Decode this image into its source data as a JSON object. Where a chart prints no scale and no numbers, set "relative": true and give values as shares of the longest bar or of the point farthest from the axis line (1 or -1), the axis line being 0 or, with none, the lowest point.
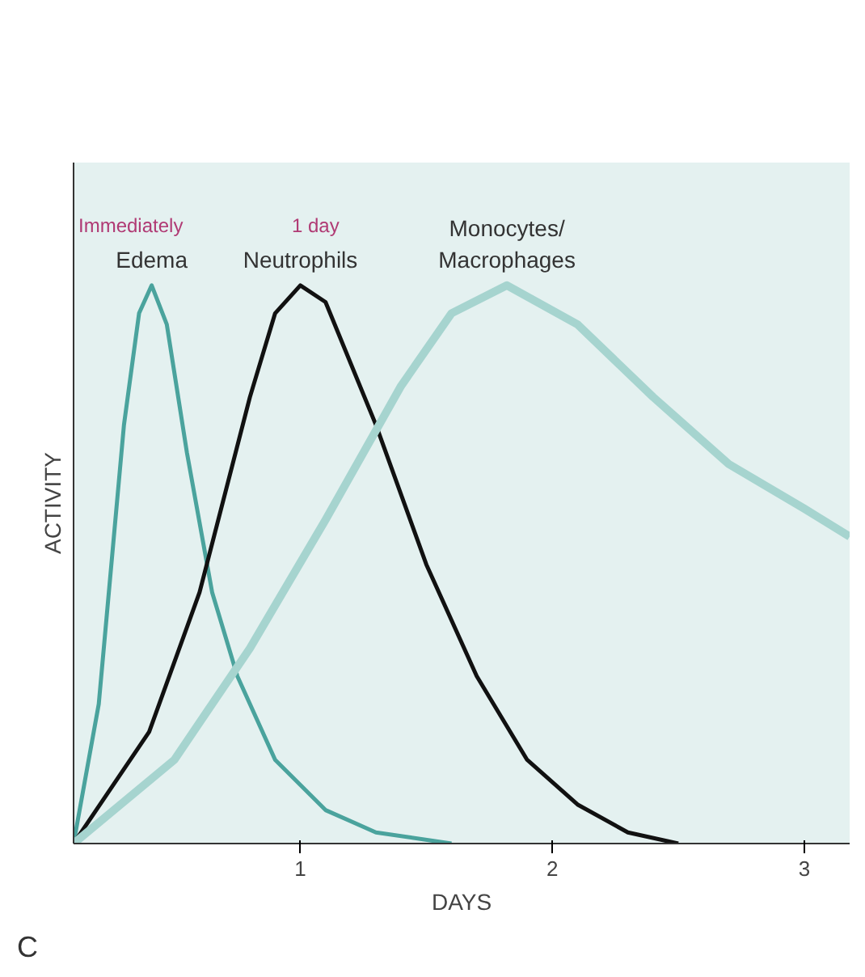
{
  "chart_data": {
    "type": "line",
    "relative": true,
    "xlabel": "DAYS",
    "ylabel": "ACTIVITY",
    "xlim": [
      0.1,
      3.18
    ],
    "xticks": [
      1,
      2,
      3
    ],
    "grid": false,
    "tick_labels": "x",
    "line_style": "solid",
    "marker": "none",
    "series": [
      {
        "name": "Edema",
        "color": "#4aa39d",
        "x": [
          0.1,
          0.2,
          0.3,
          0.36,
          0.41,
          0.47,
          0.55,
          0.65,
          0.75,
          0.9,
          1.1,
          1.3,
          1.6
        ],
        "values": [
          0,
          0.25,
          0.75,
          0.95,
          1,
          0.93,
          0.7,
          0.45,
          0.3,
          0.15,
          0.06,
          0.02,
          0
        ]
      },
      {
        "name": "Neutrophils",
        "color": "#111111",
        "x": [
          0.1,
          0.4,
          0.6,
          0.8,
          0.9,
          1.0,
          1.1,
          1.3,
          1.5,
          1.7,
          1.9,
          2.1,
          2.3,
          2.5
        ],
        "values": [
          0,
          0.2,
          0.45,
          0.8,
          0.95,
          1,
          0.97,
          0.75,
          0.5,
          0.3,
          0.15,
          0.07,
          0.02,
          0
        ]
      },
      {
        "name": "Monocytes/\nMacrophages",
        "color": "#a6d4cf",
        "x": [
          0.1,
          0.5,
          0.8,
          1.1,
          1.4,
          1.6,
          1.82,
          2.1,
          2.4,
          2.7,
          3.0,
          3.18
        ],
        "values": [
          0,
          0.15,
          0.35,
          0.58,
          0.82,
          0.95,
          1,
          0.93,
          0.8,
          0.68,
          0.6,
          0.55
        ]
      }
    ],
    "annotations": [
      "Immediately",
      "1 day",
      "C"
    ]
  }
}
